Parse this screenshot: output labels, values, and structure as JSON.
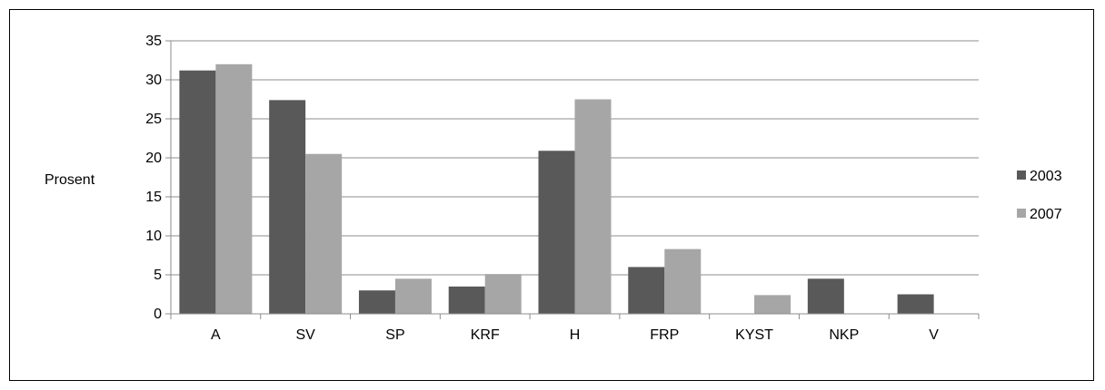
{
  "chart_data": {
    "type": "bar",
    "title": "",
    "xlabel": "",
    "ylabel": "Prosent",
    "ylim": [
      0,
      35
    ],
    "yticks": [
      0,
      5,
      10,
      15,
      20,
      25,
      30,
      35
    ],
    "grid": true,
    "legend_position": "right",
    "categories": [
      "A",
      "SV",
      "SP",
      "KRF",
      "H",
      "FRP",
      "KYST",
      "NKP",
      "V"
    ],
    "series": [
      {
        "name": "2003",
        "color": "#595959",
        "values": [
          31.2,
          27.4,
          3.0,
          3.5,
          20.9,
          6.0,
          0,
          4.5,
          2.5
        ]
      },
      {
        "name": "2007",
        "color": "#a6a6a6",
        "values": [
          32.0,
          20.5,
          4.5,
          5.1,
          27.5,
          8.3,
          2.4,
          0,
          0
        ]
      }
    ]
  }
}
